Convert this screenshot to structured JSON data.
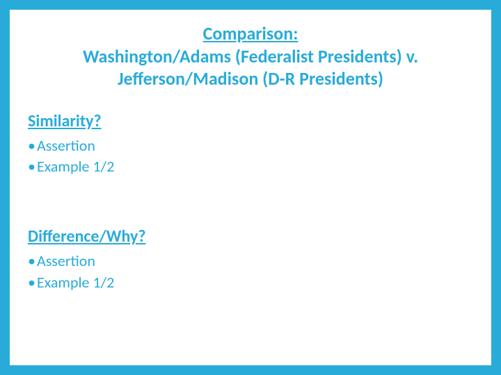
{
  "colors": {
    "frame": "#29abda",
    "slide_bg": "#ffffff",
    "text": "#29abda"
  },
  "typography": {
    "title_fontsize": 26,
    "title_weight": 600,
    "heading_fontsize": 24,
    "heading_weight": 600,
    "bullet_fontsize": 22,
    "bullet_weight": 400,
    "font_family": "Segoe UI"
  },
  "title": {
    "line1": "Comparison:",
    "line2": "Washington/Adams (Federalist Presidents) v.",
    "line3": "Jefferson/Madison (D-R Presidents)"
  },
  "sections": [
    {
      "heading": "Similarity?",
      "bullets": [
        "Assertion",
        "Example 1/2"
      ]
    },
    {
      "heading": "Difference/Why?",
      "bullets": [
        "Assertion",
        "Example 1/2"
      ]
    }
  ]
}
